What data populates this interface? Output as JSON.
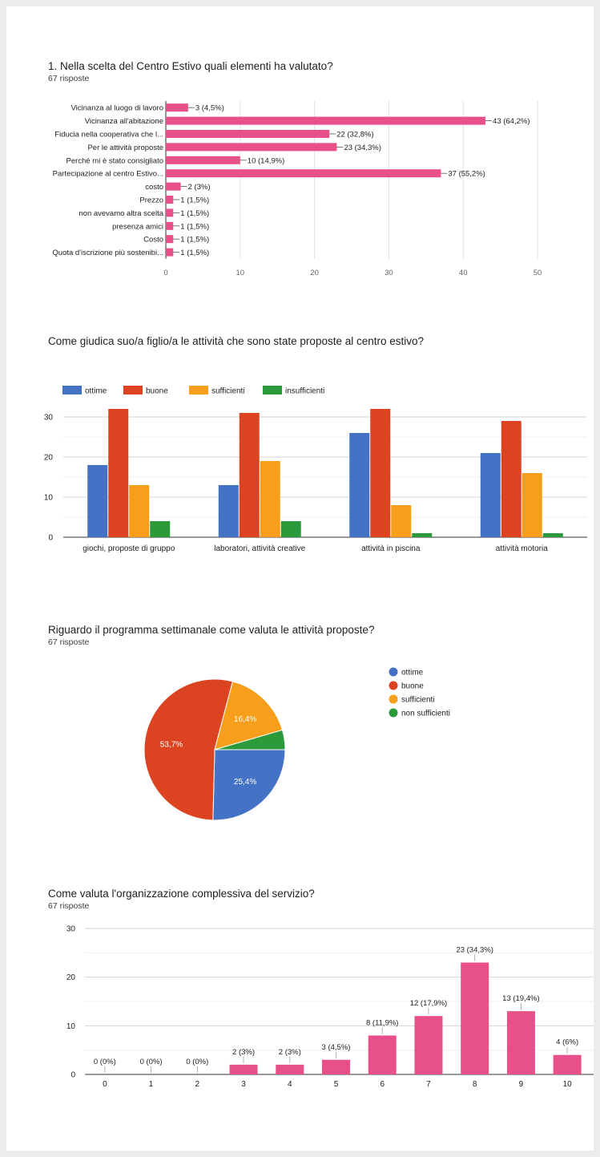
{
  "colors": {
    "pink": "#e8508a",
    "blue": "#4472c4",
    "red": "#dc4321",
    "orange": "#f79e1b",
    "green": "#2a9a3a",
    "grid": "#e0e0e0",
    "axis": "#9e9e9e",
    "text": "#202124"
  },
  "q1": {
    "title": "1. Nella scelta del Centro Estivo quali elementi ha valutato?",
    "subtitle": "67 risposte"
  },
  "q2": {
    "title": "Come giudica suo/a figlio/a le attività che sono state proposte al centro estivo?"
  },
  "q3": {
    "title": "Riguardo il programma settimanale come valuta le attività proposte?",
    "subtitle": "67 risposte"
  },
  "q4": {
    "title": "Come valuta l'organizzazione complessiva del servizio?",
    "subtitle": "67 risposte"
  },
  "chart_data": [
    {
      "type": "bar",
      "orientation": "horizontal",
      "categories": [
        "Vicinanza al luogo di lavoro",
        "Vicinanza all'abitazione",
        "Fiducia nella cooperativa che l...",
        "Per le attività proposte",
        "Perché mi è stato consigliato",
        "Partecipazione al centro Estivo...",
        "costo",
        "Prezzo",
        "non avevamo altra scelta",
        "presenza amici",
        "Costo",
        "Quota d'iscrizione più sostenibi..."
      ],
      "values": [
        3,
        43,
        22,
        23,
        10,
        37,
        2,
        1,
        1,
        1,
        1,
        1
      ],
      "data_labels": [
        "3 (4,5%)",
        "43 (64,2%)",
        "22 (32,8%)",
        "23 (34,3%)",
        "10 (14,9%)",
        "37 (55,2%)",
        "2 (3%)",
        "1 (1,5%)",
        "1 (1,5%)",
        "1 (1,5%)",
        "1 (1,5%)",
        "1 (1,5%)"
      ],
      "xlim": [
        0,
        50
      ],
      "xticks": [
        "0",
        "10",
        "20",
        "30",
        "40",
        "50"
      ],
      "color": "#e8508a",
      "grid": true
    },
    {
      "type": "bar",
      "categories": [
        "giochi, proposte di gruppo",
        "laboratori, attività creative",
        "attività in piscina",
        "attività motoria"
      ],
      "series": [
        {
          "name": "ottime",
          "color": "#4472c4",
          "values": [
            18,
            13,
            26,
            21
          ]
        },
        {
          "name": "buone",
          "color": "#dc4321",
          "values": [
            32,
            31,
            32,
            29
          ]
        },
        {
          "name": "sufficienti",
          "color": "#f79e1b",
          "values": [
            13,
            19,
            8,
            16
          ]
        },
        {
          "name": "insufficienti",
          "color": "#2a9a3a",
          "values": [
            4,
            4,
            1,
            1
          ]
        }
      ],
      "ylim": [
        0,
        34
      ],
      "yticks": [
        "0",
        "10",
        "20",
        "30"
      ],
      "legend": "top",
      "grid": true
    },
    {
      "type": "pie",
      "slices": [
        {
          "name": "ottime",
          "value": 25.4,
          "label": "25,4%",
          "color": "#4472c4"
        },
        {
          "name": "buone",
          "value": 53.7,
          "label": "53,7%",
          "color": "#dc4321"
        },
        {
          "name": "sufficienti",
          "value": 16.4,
          "label": "16,4%",
          "color": "#f79e1b"
        },
        {
          "name": "non sufficienti",
          "value": 4.5,
          "label": "",
          "color": "#2a9a3a"
        }
      ],
      "legend": "right"
    },
    {
      "type": "bar",
      "categories": [
        "0",
        "1",
        "2",
        "3",
        "4",
        "5",
        "6",
        "7",
        "8",
        "9",
        "10"
      ],
      "values": [
        0,
        0,
        0,
        2,
        2,
        3,
        8,
        12,
        23,
        13,
        4
      ],
      "data_labels": [
        "0 (0%)",
        "0 (0%)",
        "0 (0%)",
        "2 (3%)",
        "2 (3%)",
        "3 (4,5%)",
        "8 (11,9%)",
        "12 (17,9%)",
        "23 (34,3%)",
        "13 (19,4%)",
        "4 (6%)"
      ],
      "ylim": [
        0,
        30
      ],
      "yticks": [
        "0",
        "10",
        "20",
        "30"
      ],
      "color": "#e8508a",
      "grid": true
    }
  ]
}
